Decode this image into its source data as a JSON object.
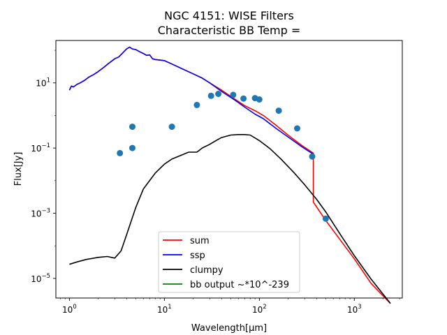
{
  "chart_data": {
    "type": "line",
    "title": "NGC 4151: WISE Filters",
    "subtitle": "Characteristic BB Temp =",
    "xlabel": "Wavelength[μm]",
    "ylabel": "Flux[Jy]",
    "x_scale": "log",
    "y_scale": "log",
    "xlim": [
      0.72,
      3200
    ],
    "ylim": [
      2.5e-06,
      200
    ],
    "x_ticks": [
      {
        "value": 1,
        "base": "10",
        "exp": "0"
      },
      {
        "value": 10,
        "base": "10",
        "exp": "1"
      },
      {
        "value": 100,
        "base": "10",
        "exp": "2"
      },
      {
        "value": 1000,
        "base": "10",
        "exp": "3"
      }
    ],
    "y_ticks": [
      {
        "value": 1e-05,
        "base": "10",
        "exp": "−5"
      },
      {
        "value": 0.001,
        "base": "10",
        "exp": "−3"
      },
      {
        "value": 0.1,
        "base": "10",
        "exp": "−1"
      },
      {
        "value": 10,
        "base": "10",
        "exp": "1"
      }
    ],
    "grid": false,
    "legend_position": "bottom-center",
    "series": [
      {
        "name": "sum",
        "color": "#ff0000",
        "points": [
          [
            1.0,
            6.0
          ],
          [
            1.05,
            8.0
          ],
          [
            1.1,
            7.5
          ],
          [
            1.2,
            9.0
          ],
          [
            1.3,
            10
          ],
          [
            1.45,
            12
          ],
          [
            1.6,
            15
          ],
          [
            1.8,
            18
          ],
          [
            2.0,
            22
          ],
          [
            2.3,
            30
          ],
          [
            2.6,
            40
          ],
          [
            3.0,
            55
          ],
          [
            3.3,
            62
          ],
          [
            3.6,
            80
          ],
          [
            4.0,
            110
          ],
          [
            4.3,
            125
          ],
          [
            4.6,
            110
          ],
          [
            5.0,
            105
          ],
          [
            5.5,
            90
          ],
          [
            6.0,
            80
          ],
          [
            6.5,
            70
          ],
          [
            7.0,
            72
          ],
          [
            7.5,
            55
          ],
          [
            8.0,
            52
          ],
          [
            9.0,
            50
          ],
          [
            10,
            48
          ],
          [
            12,
            38
          ],
          [
            15,
            28
          ],
          [
            20,
            19
          ],
          [
            25,
            14
          ],
          [
            30,
            10
          ],
          [
            40,
            6.0
          ],
          [
            55,
            3.2
          ],
          [
            70,
            2.0
          ],
          [
            90,
            1.4
          ],
          [
            110,
            1.0
          ],
          [
            150,
            0.5
          ],
          [
            200,
            0.25
          ],
          [
            280,
            0.12
          ],
          [
            370,
            0.07
          ],
          [
            370,
            0.0022
          ],
          [
            500,
            0.0006
          ],
          [
            700,
            0.00016
          ],
          [
            1000,
            4e-05
          ],
          [
            1500,
            7e-06
          ],
          [
            2400,
            1.7e-06
          ]
        ]
      },
      {
        "name": "ssp",
        "color": "#0000ff",
        "points": [
          [
            1.0,
            6.0
          ],
          [
            1.05,
            8.0
          ],
          [
            1.1,
            7.5
          ],
          [
            1.2,
            9.0
          ],
          [
            1.3,
            10
          ],
          [
            1.45,
            12
          ],
          [
            1.6,
            15
          ],
          [
            1.8,
            18
          ],
          [
            2.0,
            22
          ],
          [
            2.3,
            30
          ],
          [
            2.6,
            40
          ],
          [
            3.0,
            55
          ],
          [
            3.3,
            62
          ],
          [
            3.6,
            80
          ],
          [
            4.0,
            110
          ],
          [
            4.3,
            125
          ],
          [
            4.6,
            110
          ],
          [
            5.0,
            105
          ],
          [
            5.5,
            90
          ],
          [
            6.0,
            80
          ],
          [
            6.5,
            70
          ],
          [
            7.0,
            72
          ],
          [
            7.5,
            55
          ],
          [
            8.0,
            52
          ],
          [
            9.0,
            50
          ],
          [
            10,
            48
          ],
          [
            12,
            38
          ],
          [
            15,
            28
          ],
          [
            20,
            19
          ],
          [
            25,
            14
          ],
          [
            30,
            10
          ],
          [
            40,
            5.5
          ],
          [
            55,
            3.0
          ],
          [
            70,
            1.8
          ],
          [
            90,
            1.1
          ],
          [
            110,
            0.8
          ],
          [
            150,
            0.4
          ],
          [
            200,
            0.22
          ],
          [
            280,
            0.11
          ],
          [
            370,
            0.065
          ]
        ]
      },
      {
        "name": "clumpy",
        "color": "#000000",
        "points": [
          [
            1.0,
            2.7e-05
          ],
          [
            1.2,
            3.2e-05
          ],
          [
            1.5,
            3.8e-05
          ],
          [
            2.0,
            4.4e-05
          ],
          [
            2.5,
            4.7e-05
          ],
          [
            3.0,
            4.2e-05
          ],
          [
            3.5,
            7e-05
          ],
          [
            4.0,
            0.00022
          ],
          [
            5.0,
            0.0015
          ],
          [
            6.0,
            0.0055
          ],
          [
            8.0,
            0.017
          ],
          [
            10,
            0.032
          ],
          [
            12,
            0.046
          ],
          [
            15,
            0.06
          ],
          [
            18,
            0.075
          ],
          [
            22,
            0.075
          ],
          [
            25,
            0.1
          ],
          [
            30,
            0.13
          ],
          [
            35,
            0.17
          ],
          [
            40,
            0.21
          ],
          [
            50,
            0.25
          ],
          [
            60,
            0.26
          ],
          [
            70,
            0.26
          ],
          [
            80,
            0.25
          ],
          [
            100,
            0.17
          ],
          [
            130,
            0.095
          ],
          [
            170,
            0.045
          ],
          [
            230,
            0.018
          ],
          [
            300,
            0.0075
          ],
          [
            400,
            0.0027
          ],
          [
            500,
            0.0011
          ],
          [
            700,
            0.00024
          ],
          [
            1000,
            5e-05
          ],
          [
            1500,
            9.5e-06
          ],
          [
            2400,
            1.7e-06
          ]
        ]
      },
      {
        "name": "bb output ~*10^-239",
        "color": "#008000",
        "points": []
      }
    ],
    "scatter": {
      "color": "#1f77b4",
      "points": [
        [
          3.4,
          0.07
        ],
        [
          4.6,
          0.1
        ],
        [
          4.6,
          0.45
        ],
        [
          12,
          0.45
        ],
        [
          22,
          2.1
        ],
        [
          31,
          4.0
        ],
        [
          37,
          4.6
        ],
        [
          53,
          4.3
        ],
        [
          68,
          3.3
        ],
        [
          90,
          3.4
        ],
        [
          100,
          3.1
        ],
        [
          160,
          1.4
        ],
        [
          250,
          0.4
        ],
        [
          360,
          0.055
        ],
        [
          500,
          0.00068
        ]
      ]
    }
  }
}
